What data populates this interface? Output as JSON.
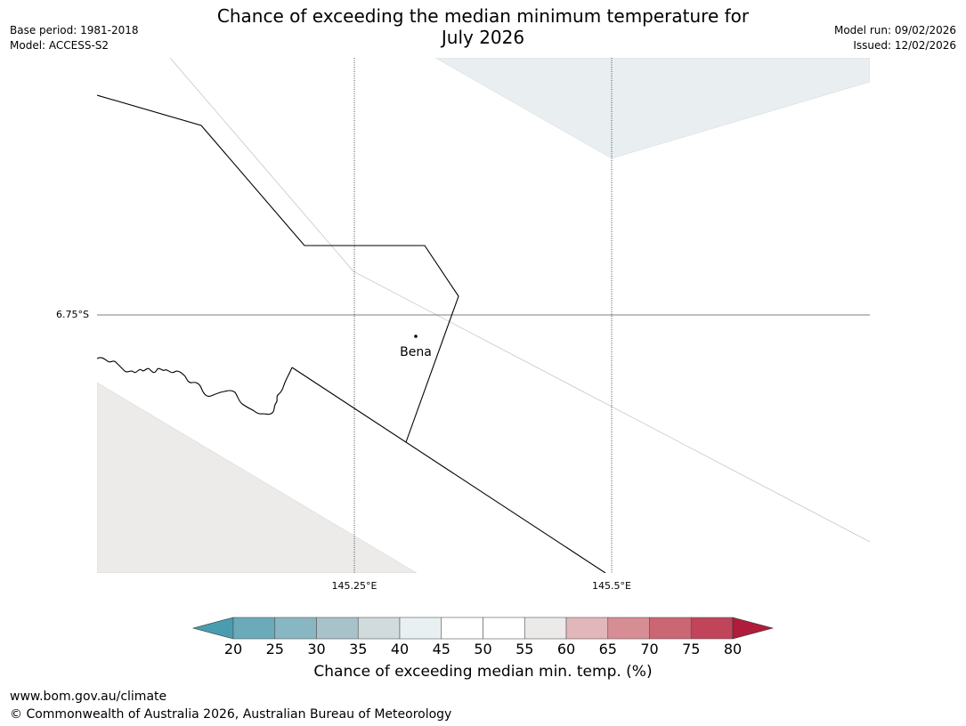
{
  "header": {
    "title_line1": "Chance of exceeding the median minimum temperature for",
    "title_line2": "July 2026",
    "base_period": "Base period: 1981-2018",
    "model": "Model: ACCESS-S2",
    "model_run": "Model run: 09/02/2026",
    "issued": "Issued: 12/02/2026"
  },
  "map": {
    "latitude_labels": [
      "6.75°S"
    ],
    "longitude_labels": [
      "145.25°E",
      "145.5°E"
    ],
    "places": [
      {
        "name": "Bena"
      }
    ],
    "colors": {
      "border": "#000000",
      "grid": "#000000",
      "region_upper_right": "#e9eff1",
      "region_lower_left": "#ecebe9"
    }
  },
  "colorbar": {
    "label": "Chance of exceeding median min. temp. (%)",
    "ticks": [
      "20",
      "25",
      "30",
      "35",
      "40",
      "45",
      "50",
      "55",
      "60",
      "65",
      "70",
      "75",
      "80"
    ],
    "segment_colors": [
      "#4a9db0",
      "#6aaab9",
      "#89b6c3",
      "#a7c3c9",
      "#d1dadc",
      "#e9f0f2",
      "#ffffff",
      "#ffffff",
      "#eceae8",
      "#e1b7bb",
      "#d78d94",
      "#ca6773",
      "#c0445a",
      "#b01c3b"
    ]
  },
  "footer": {
    "url": "www.bom.gov.au/climate",
    "copyright": "© Commonwealth of Australia 2026, Australian Bureau of Meteorology"
  }
}
